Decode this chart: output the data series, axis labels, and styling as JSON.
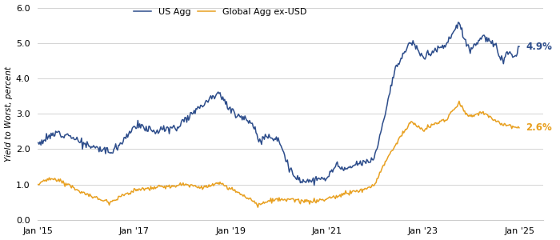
{
  "title": "",
  "ylabel": "Yield to Worst, percent",
  "legend_labels": [
    "US Agg",
    "Global Agg ex-USD"
  ],
  "us_agg_color": "#2d4d8b",
  "global_agg_color": "#e8a020",
  "annotation_us": "4.9%",
  "annotation_global": "2.6%",
  "annotation_us_color": "#2d4d8b",
  "annotation_global_color": "#e8a020",
  "ylim": [
    0.0,
    6.0
  ],
  "yticks": [
    0.0,
    1.0,
    2.0,
    3.0,
    4.0,
    5.0,
    6.0
  ],
  "xtick_labels": [
    "Jan '15",
    "Jan '17",
    "Jan '19",
    "Jan '21",
    "Jan '23",
    "Jan '25"
  ],
  "grid_color": "#cccccc",
  "linewidth": 1.1
}
